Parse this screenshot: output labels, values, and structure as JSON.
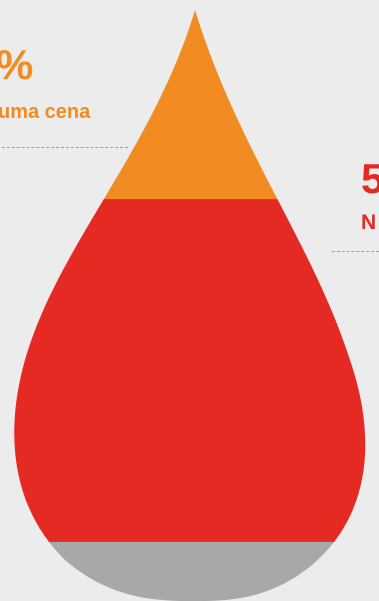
{
  "chart_data": {
    "type": "area",
    "shape": "drop",
    "segments_top_to_bottom": [
      {
        "name": "orange",
        "share_percent": 32,
        "color": "#f28c22"
      },
      {
        "name": "red",
        "share_percent": 58,
        "color": "#e52a23"
      },
      {
        "name": "gray",
        "share_percent": 10,
        "color": "#a7a8aa"
      }
    ],
    "labels": {
      "left": {
        "value": "%",
        "caption": "uma cena"
      },
      "right": {
        "value": "5",
        "caption": "N"
      }
    }
  },
  "colors": {
    "background": "#ececec",
    "accent_orange": "#f28c22",
    "accent_red": "#e52a23",
    "neutral_gray": "#a7a8aa",
    "dash_gray": "#9e9e9e"
  }
}
